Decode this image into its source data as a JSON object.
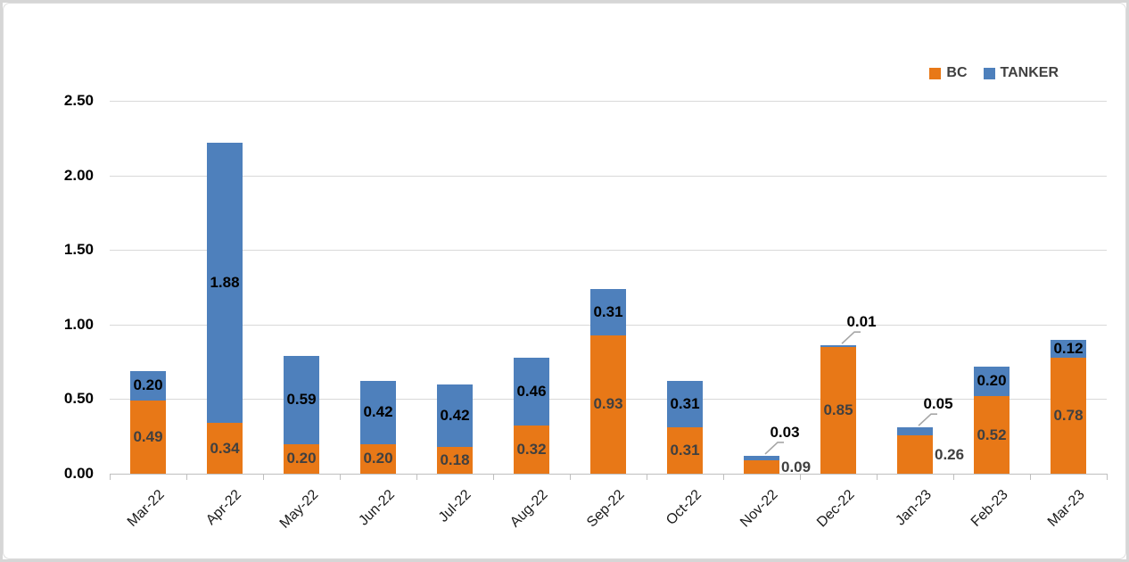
{
  "chart_data": {
    "type": "bar",
    "stacked": true,
    "categories": [
      "Mar-22",
      "Apr-22",
      "May-22",
      "Jun-22",
      "Jul-22",
      "Aug-22",
      "Sep-22",
      "Oct-22",
      "Nov-22",
      "Dec-22",
      "Jan-23",
      "Feb-23",
      "Mar-23"
    ],
    "series": [
      {
        "name": "BC",
        "color": "#E87817",
        "label_color": "#404040",
        "values": [
          0.49,
          0.34,
          0.2,
          0.2,
          0.18,
          0.32,
          0.93,
          0.31,
          0.09,
          0.85,
          0.26,
          0.52,
          0.78
        ]
      },
      {
        "name": "TANKER",
        "color": "#4E80BC",
        "label_color": "#000000",
        "values": [
          0.2,
          1.88,
          0.59,
          0.42,
          0.42,
          0.46,
          0.31,
          0.31,
          0.03,
          0.01,
          0.05,
          0.2,
          0.12
        ]
      }
    ],
    "y_ticks": [
      "0.00",
      "0.50",
      "1.00",
      "1.50",
      "2.00",
      "2.50"
    ],
    "ylim": [
      0,
      2.5
    ],
    "y_tick_step": 0.5,
    "grid": true,
    "data_labels": true,
    "label_decimals": 2,
    "legend_position": "top-right",
    "legend_entries": [
      "BC",
      "TANKER"
    ]
  },
  "colors": {
    "gridline": "#D9D9D9",
    "axis_line": "#BFBFBF",
    "leader_line": "#A6A6A6",
    "bc": "#E87817",
    "tanker": "#4E80BC"
  }
}
